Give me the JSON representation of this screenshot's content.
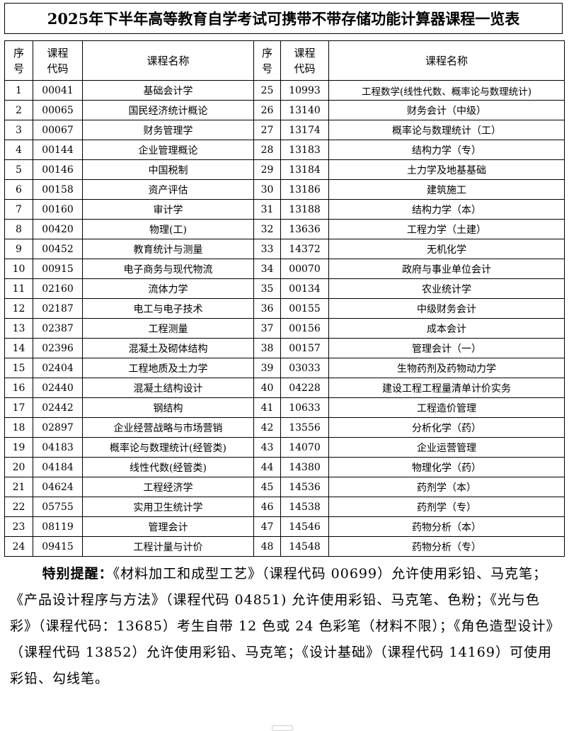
{
  "header": {
    "title": "2025年下半年高等教育自学考试可携带不带存储功能计算器课程一览表"
  },
  "table": {
    "columns": [
      "序号",
      "课程代码",
      "课程名称",
      "序号",
      "课程代码",
      "课程名称"
    ],
    "rows": [
      [
        1,
        "00041",
        "基础会计学",
        25,
        "10993",
        "工程数学(线性代数、概率论与数理统计)"
      ],
      [
        2,
        "00065",
        "国民经济统计概论",
        26,
        "13140",
        "财务会计（中级）"
      ],
      [
        3,
        "00067",
        "财务管理学",
        27,
        "13174",
        "概率论与数理统计（工）"
      ],
      [
        4,
        "00144",
        "企业管理概论",
        28,
        "13183",
        "结构力学（专）"
      ],
      [
        5,
        "00146",
        "中国税制",
        29,
        "13184",
        "土力学及地基基础"
      ],
      [
        6,
        "00158",
        "资产评估",
        30,
        "13186",
        "建筑施工"
      ],
      [
        7,
        "00160",
        "审计学",
        31,
        "13188",
        "结构力学（本）"
      ],
      [
        8,
        "00420",
        "物理(工)",
        32,
        "13636",
        "工程力学（土建）"
      ],
      [
        9,
        "00452",
        "教育统计与测量",
        33,
        "14372",
        "无机化学"
      ],
      [
        10,
        "00915",
        "电子商务与现代物流",
        34,
        "00070",
        "政府与事业单位会计"
      ],
      [
        11,
        "02160",
        "流体力学",
        35,
        "00134",
        "农业统计学"
      ],
      [
        12,
        "02187",
        "电工与电子技术",
        36,
        "00155",
        "中级财务会计"
      ],
      [
        13,
        "02387",
        "工程测量",
        37,
        "00156",
        "成本会计"
      ],
      [
        14,
        "02396",
        "混凝土及砌体结构",
        38,
        "00157",
        "管理会计（一）"
      ],
      [
        15,
        "02404",
        "工程地质及土力学",
        39,
        "03033",
        "生物药剂及药物动力学"
      ],
      [
        16,
        "02440",
        "混凝土结构设计",
        40,
        "04228",
        "建设工程工程量清单计价实务"
      ],
      [
        17,
        "02442",
        "钢结构",
        41,
        "10633",
        "工程造价管理"
      ],
      [
        18,
        "02897",
        "企业经营战略与市场营销",
        42,
        "13556",
        "分析化学（药）"
      ],
      [
        19,
        "04183",
        "概率论与数理统计(经管类)",
        43,
        "14070",
        "企业运营管理"
      ],
      [
        20,
        "04184",
        "线性代数(经管类)",
        44,
        "14380",
        "物理化学（药）"
      ],
      [
        21,
        "04624",
        "工程经济学",
        45,
        "14536",
        "药剂学（本）"
      ],
      [
        22,
        "05755",
        "实用卫生统计学",
        46,
        "14538",
        "药剂学（专）"
      ],
      [
        23,
        "08119",
        "管理会计",
        47,
        "14546",
        "药物分析（本）"
      ],
      [
        24,
        "09415",
        "工程计量与计价",
        48,
        "14548",
        "药物分析（专）"
      ]
    ]
  },
  "note": {
    "label": "特别提醒：",
    "text": "《材料加工和成型工艺》（课程代码 00699）允许使用彩铅、马克笔；《产品设计程序与方法》（课程代码 04851) 允许使用彩铅、马克笔、色粉；《光与色彩》（课程代码：13685）考生自带 12 色或 24 色彩笔（材料不限）；《角色造型设计》（课程代码 13852）允许使用彩铅、马克笔；《设计基础》（课程代码 14169）可使用彩铅、勾线笔。"
  }
}
